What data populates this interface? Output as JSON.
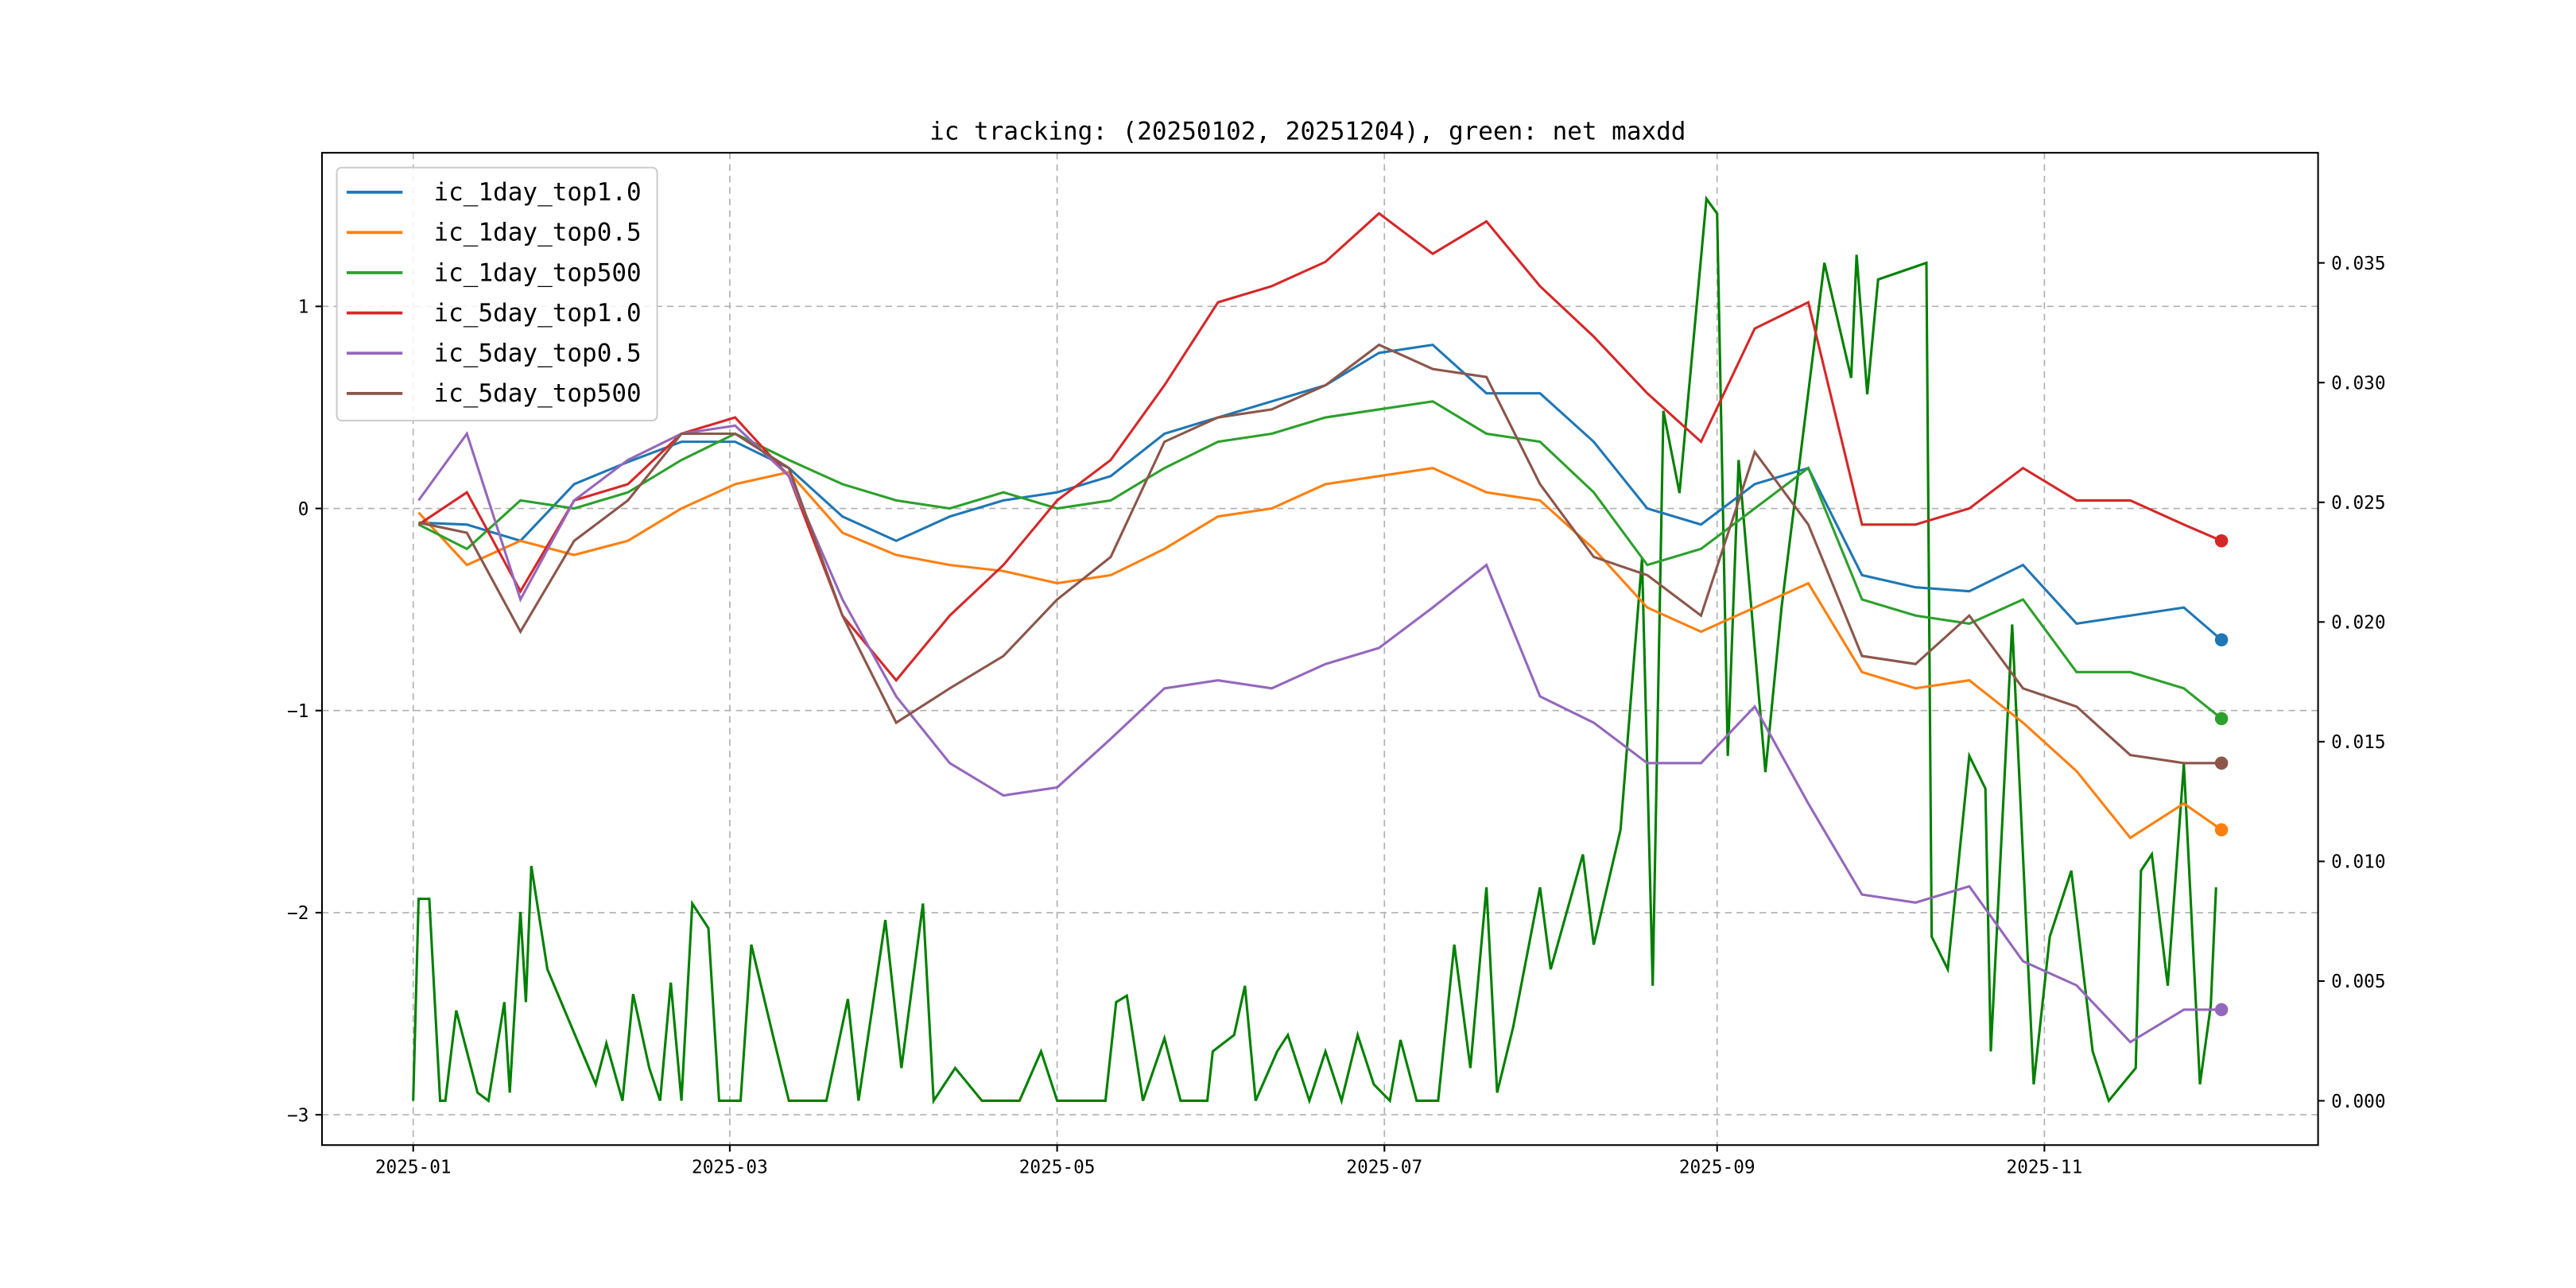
{
  "chart_data": {
    "type": "line",
    "title": "ic tracking: (20250102, 20251204), green: net maxdd",
    "xlabel": "",
    "ylabel": "",
    "x_unit": "days since 2025-01-01",
    "xlim": [
      -17,
      355
    ],
    "ylim": [
      -3.15,
      1.76
    ],
    "y2lim": [
      -0.00185,
      0.0396
    ],
    "x_ticks": [
      {
        "day": 0,
        "label": "2025-01"
      },
      {
        "day": 59,
        "label": "2025-03"
      },
      {
        "day": 120,
        "label": "2025-05"
      },
      {
        "day": 181,
        "label": "2025-07"
      },
      {
        "day": 243,
        "label": "2025-09"
      },
      {
        "day": 304,
        "label": "2025-11"
      }
    ],
    "y_ticks": [
      {
        "v": -3,
        "label": "−3"
      },
      {
        "v": -2,
        "label": "−2"
      },
      {
        "v": -1,
        "label": "−1"
      },
      {
        "v": 0,
        "label": "0"
      },
      {
        "v": 1,
        "label": "1"
      }
    ],
    "y2_ticks": [
      {
        "v": 0,
        "label": "0.000"
      },
      {
        "v": 0.005,
        "label": "0.005"
      },
      {
        "v": 0.01,
        "label": "0.010"
      },
      {
        "v": 0.015,
        "label": "0.015"
      },
      {
        "v": 0.02,
        "label": "0.020"
      },
      {
        "v": 0.025,
        "label": "0.025"
      },
      {
        "v": 0.03,
        "label": "0.030"
      },
      {
        "v": 0.035,
        "label": "0.035"
      }
    ],
    "grid": true,
    "legend_position": "top-left",
    "x": [
      1,
      10,
      20,
      30,
      40,
      50,
      60,
      70,
      80,
      90,
      100,
      110,
      120,
      130,
      140,
      150,
      160,
      170,
      180,
      190,
      200,
      210,
      220,
      230,
      240,
      250,
      260,
      270,
      280,
      290,
      300,
      310,
      320,
      330,
      337
    ],
    "series": [
      {
        "name": "ic_1day_top1.0",
        "color": "#1f77b4",
        "values": [
          -0.07,
          -0.08,
          -0.16,
          0.12,
          0.23,
          0.33,
          0.33,
          0.2,
          -0.04,
          -0.16,
          -0.04,
          0.04,
          0.08,
          0.16,
          0.37,
          0.45,
          0.53,
          0.61,
          0.77,
          0.81,
          0.57,
          0.57,
          0.33,
          0,
          -0.08,
          0.12,
          0.2,
          -0.33,
          -0.39,
          -0.41,
          -0.28,
          -0.57,
          -0.53,
          -0.49,
          -0.65
        ]
      },
      {
        "name": "ic_1day_top0.5",
        "color": "#ff7f0e",
        "values": [
          -0.02,
          -0.28,
          -0.16,
          -0.23,
          -0.16,
          0,
          0.12,
          0.18,
          -0.12,
          -0.23,
          -0.28,
          -0.31,
          -0.37,
          -0.33,
          -0.2,
          -0.04,
          0,
          0.12,
          0.16,
          0.2,
          0.08,
          0.04,
          -0.2,
          -0.49,
          -0.61,
          -0.49,
          -0.37,
          -0.81,
          -0.89,
          -0.85,
          -1.06,
          -1.3,
          -1.63,
          -1.46,
          -1.59
        ]
      },
      {
        "name": "ic_1day_top500",
        "color": "#2ca02c",
        "values": [
          -0.08,
          -0.2,
          0.04,
          0,
          0.08,
          0.24,
          0.37,
          0.24,
          0.12,
          0.04,
          0,
          0.08,
          0,
          0.04,
          0.2,
          0.33,
          0.37,
          0.45,
          0.49,
          0.53,
          0.37,
          0.33,
          0.08,
          -0.28,
          -0.2,
          0,
          0.2,
          -0.45,
          -0.53,
          -0.57,
          -0.45,
          -0.81,
          -0.81,
          -0.89,
          -1.04
        ]
      },
      {
        "name": "ic_5day_top1.0",
        "color": "#d62728",
        "values": [
          -0.08,
          0.08,
          -0.41,
          0.04,
          0.12,
          0.37,
          0.45,
          0.16,
          -0.53,
          -0.85,
          -0.53,
          -0.28,
          0.04,
          0.24,
          0.61,
          1.02,
          1.1,
          1.22,
          1.46,
          1.26,
          1.42,
          1.1,
          0.85,
          0.57,
          0.33,
          0.89,
          1.02,
          -0.08,
          -0.08,
          0,
          0.2,
          0.04,
          0.04,
          -0.08,
          -0.16
        ]
      },
      {
        "name": "ic_5day_top0.5",
        "color": "#9467bd",
        "values": [
          0.04,
          0.37,
          -0.45,
          0.04,
          0.24,
          0.37,
          0.41,
          0.16,
          -0.45,
          -0.93,
          -1.26,
          -1.42,
          -1.38,
          -1.14,
          -0.89,
          -0.85,
          -0.89,
          -0.77,
          -0.69,
          -0.49,
          -0.28,
          -0.93,
          -1.06,
          -1.26,
          -1.26,
          -0.98,
          -1.46,
          -1.91,
          -1.95,
          -1.87,
          -2.24,
          -2.36,
          -2.64,
          -2.48,
          -2.48
        ]
      },
      {
        "name": "ic_5day_top500",
        "color": "#8c564b",
        "values": [
          -0.07,
          -0.12,
          -0.61,
          -0.16,
          0.04,
          0.37,
          0.37,
          0.2,
          -0.53,
          -1.06,
          -0.89,
          -0.73,
          -0.45,
          -0.24,
          0.33,
          0.45,
          0.49,
          0.61,
          0.81,
          0.69,
          0.65,
          0.12,
          -0.24,
          -0.33,
          -0.53,
          0.28,
          -0.08,
          -0.73,
          -0.77,
          -0.53,
          -0.89,
          -0.98,
          -1.22,
          -1.26,
          -1.26
        ]
      }
    ],
    "maxdd": {
      "name": "net maxdd",
      "color": "#008000",
      "axis": "right",
      "points": [
        [
          0,
          0
        ],
        [
          1,
          0.00844
        ],
        [
          3,
          0.00844
        ],
        [
          5,
          0
        ],
        [
          6,
          0
        ],
        [
          8,
          0.00377
        ],
        [
          12,
          0.00034
        ],
        [
          14,
          0
        ],
        [
          17,
          0.00412
        ],
        [
          18,
          0.00034
        ],
        [
          20,
          0.00789
        ],
        [
          21,
          0.00412
        ],
        [
          22,
          0.00981
        ],
        [
          25,
          0.00549
        ],
        [
          34,
          0.00069
        ],
        [
          36,
          0.0024
        ],
        [
          39,
          0
        ],
        [
          41,
          0.00446
        ],
        [
          44,
          0.00137
        ],
        [
          46,
          0
        ],
        [
          48,
          0.00494
        ],
        [
          50,
          0
        ],
        [
          52,
          0.00824
        ],
        [
          55,
          0.00721
        ],
        [
          57,
          0
        ],
        [
          61,
          0
        ],
        [
          63,
          0.00652
        ],
        [
          67,
          0.00275
        ],
        [
          70,
          0
        ],
        [
          77,
          0
        ],
        [
          81,
          0.00425
        ],
        [
          83,
          0
        ],
        [
          88,
          0.00755
        ],
        [
          91,
          0.00137
        ],
        [
          95,
          0.00824
        ],
        [
          97,
          0
        ],
        [
          101,
          0.00137
        ],
        [
          106,
          0
        ],
        [
          113,
          0
        ],
        [
          117,
          0.00206
        ],
        [
          120,
          0
        ],
        [
          129,
          0
        ],
        [
          131,
          0.00412
        ],
        [
          133,
          0.00439
        ],
        [
          136,
          0
        ],
        [
          140,
          0.00261
        ],
        [
          143,
          0
        ],
        [
          148,
          0
        ],
        [
          149,
          0.00206
        ],
        [
          153,
          0.00275
        ],
        [
          155,
          0.0048
        ],
        [
          157,
          0
        ],
        [
          161,
          0.00206
        ],
        [
          163,
          0.00275
        ],
        [
          167,
          0
        ],
        [
          170,
          0.00206
        ],
        [
          173,
          0
        ],
        [
          176,
          0.00275
        ],
        [
          179,
          0.00069
        ],
        [
          182,
          0
        ],
        [
          184,
          0.00254
        ],
        [
          187,
          0
        ],
        [
          191,
          0
        ],
        [
          194,
          0.00652
        ],
        [
          197,
          0.00137
        ],
        [
          200,
          0.00892
        ],
        [
          202,
          0.00034
        ],
        [
          205,
          0.00309
        ],
        [
          210,
          0.00892
        ],
        [
          212,
          0.00549
        ],
        [
          218,
          0.01029
        ],
        [
          220,
          0.00652
        ],
        [
          225,
          0.01132
        ],
        [
          229,
          0.02265
        ],
        [
          231,
          0.00481
        ],
        [
          233,
          0.02882
        ],
        [
          236,
          0.02539
        ],
        [
          241,
          0.03768
        ],
        [
          243,
          0.03706
        ],
        [
          245,
          0.01441
        ],
        [
          247,
          0.02677
        ],
        [
          252,
          0.01373
        ],
        [
          255,
          0.02059
        ],
        [
          263,
          0.035
        ],
        [
          268,
          0.0302
        ],
        [
          269,
          0.03534
        ],
        [
          271,
          0.02951
        ],
        [
          273,
          0.03431
        ],
        [
          282,
          0.035
        ],
        [
          283,
          0.00686
        ],
        [
          286,
          0.00549
        ],
        [
          290,
          0.01441
        ],
        [
          293,
          0.01304
        ],
        [
          294,
          0.00206
        ],
        [
          298,
          0.0199
        ],
        [
          302,
          0.00069
        ],
        [
          305,
          0.00686
        ],
        [
          309,
          0.00961
        ],
        [
          313,
          0.00206
        ],
        [
          316,
          0
        ],
        [
          321,
          0.00137
        ],
        [
          322,
          0.00961
        ],
        [
          324,
          0.0103
        ],
        [
          327,
          0.00481
        ],
        [
          330,
          0.01407
        ],
        [
          333,
          0.00069
        ],
        [
          335,
          0.00398
        ],
        [
          336,
          0.00892
        ]
      ]
    }
  }
}
